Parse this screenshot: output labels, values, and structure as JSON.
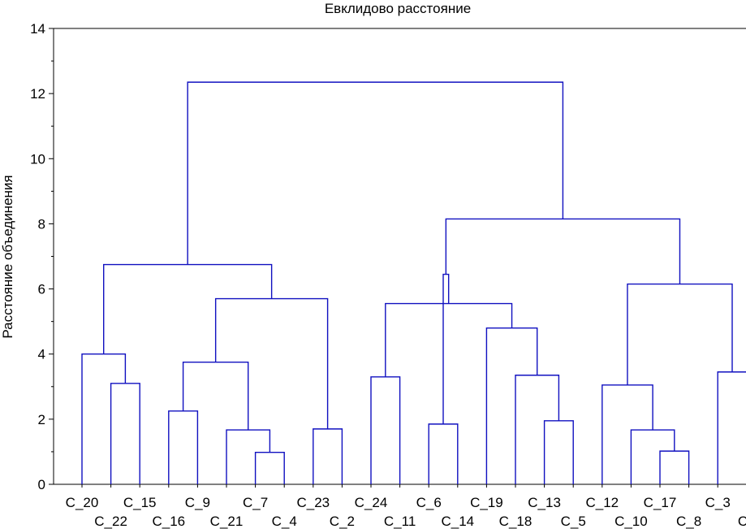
{
  "chart_data": {
    "type": "dendrogram",
    "title": "Евклидово расстояние",
    "ylabel": "Расстояние объединения",
    "ylim": [
      0,
      14
    ],
    "yticks": [
      0,
      2,
      4,
      6,
      8,
      10,
      12,
      14
    ],
    "line_color": "#1010c0",
    "leaves": [
      "C_20",
      "C_22",
      "C_15",
      "C_16",
      "C_9",
      "C_21",
      "C_7",
      "C_4",
      "C_23",
      "C_2",
      "C_24",
      "C_11",
      "C_6",
      "C_14",
      "C_19",
      "C_18",
      "C_13",
      "C_5",
      "C_12",
      "C_10",
      "C_17",
      "C_8",
      "C_3",
      "C_"
    ],
    "merges": [
      {
        "left": "C_7",
        "right": "C_4",
        "height": 0.98
      },
      {
        "left": "C_17",
        "right": "C_8",
        "height": 1.02
      },
      {
        "left": "C_21",
        "right": "m1",
        "height": 1.67
      },
      {
        "left": "C_10",
        "right": "m2",
        "height": 1.67
      },
      {
        "left": "C_23",
        "right": "C_2",
        "height": 1.7
      },
      {
        "left": "C_6",
        "right": "C_14",
        "height": 1.85
      },
      {
        "left": "C_13",
        "right": "C_5",
        "height": 1.95
      },
      {
        "left": "C_16",
        "right": "C_9",
        "height": 2.25
      },
      {
        "left": "C_12",
        "right": "m4",
        "height": 3.05
      },
      {
        "left": "C_22",
        "right": "C_15",
        "height": 3.1
      },
      {
        "left": "C_24",
        "right": "C_11",
        "height": 3.3
      },
      {
        "left": "C_18",
        "right": "m7",
        "height": 3.35
      },
      {
        "left": "C_3",
        "right": "C_",
        "height": 3.45
      },
      {
        "left": "m8",
        "right": "m3",
        "height": 3.75
      },
      {
        "left": "C_20",
        "right": "m10",
        "height": 4.0
      },
      {
        "left": "C_19",
        "right": "m12",
        "height": 4.8
      },
      {
        "left": "m11",
        "right": "m16",
        "height": 5.55
      },
      {
        "left": "m14",
        "right": "m5",
        "height": 5.7
      },
      {
        "left": "m6",
        "right": "m17",
        "height": 6.45
      },
      {
        "left": "m9",
        "right": "m13",
        "height": 6.15
      },
      {
        "left": "m15",
        "right": "m18",
        "height": 6.75
      },
      {
        "left": "m19",
        "right": "m20",
        "height": 8.15
      },
      {
        "left": "m21",
        "right": "m22",
        "height": 12.35
      }
    ]
  }
}
